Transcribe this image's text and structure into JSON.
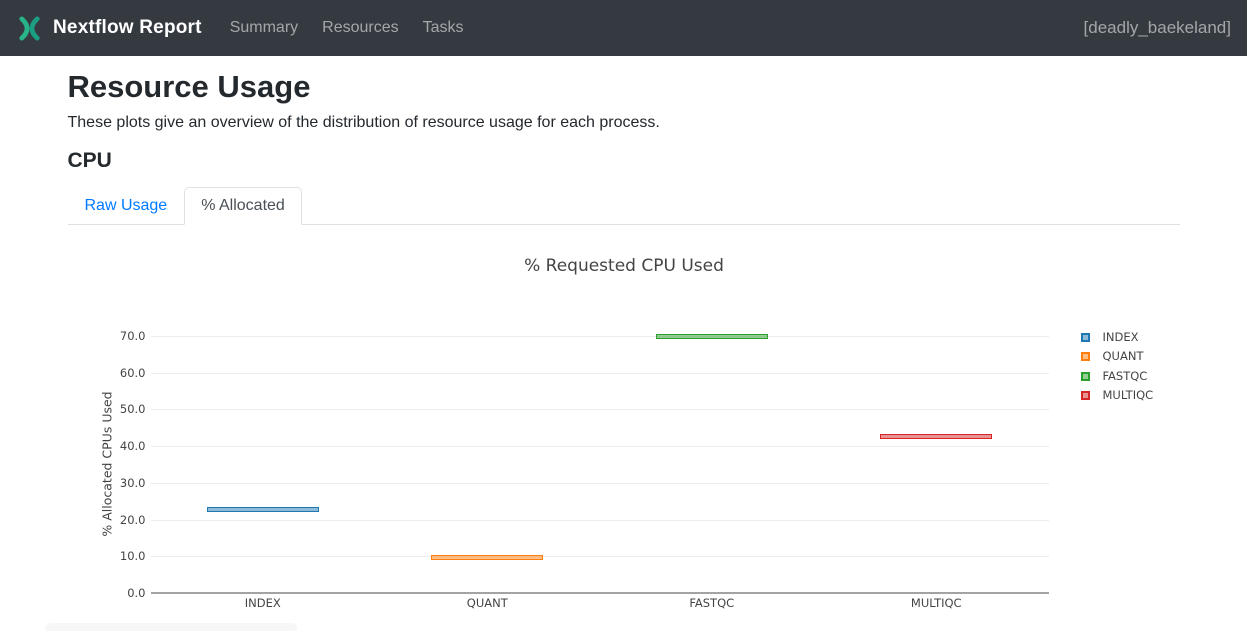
{
  "navbar": {
    "brand": "Nextflow Report",
    "items": [
      {
        "label": "Summary"
      },
      {
        "label": "Resources"
      },
      {
        "label": "Tasks"
      }
    ],
    "run_name": "[deadly_baekeland]",
    "bg_color": "#343a40",
    "logo_colors": {
      "left": "#28b389",
      "right": "#1c9e83"
    }
  },
  "page": {
    "title": "Resource Usage",
    "subtitle": "These plots give an overview of the distribution of resource usage for each process.",
    "section_title": "CPU"
  },
  "tabs": [
    {
      "label": "Raw Usage",
      "active": false
    },
    {
      "label": "% Allocated",
      "active": true
    }
  ],
  "accent_colors": {
    "link_blue": "#007bff",
    "active_tab_text": "#495057",
    "tab_border": "#dee2e6"
  },
  "chart_data": {
    "type": "box",
    "title": "% Requested CPU Used",
    "xlabel": "",
    "ylabel": "% Allocated CPUs Used",
    "categories": [
      "INDEX",
      "QUANT",
      "FASTQC",
      "MULTIQC"
    ],
    "series": [
      {
        "name": "INDEX",
        "median": 22.8,
        "color": "#1f77b4"
      },
      {
        "name": "QUANT",
        "median": 9.6,
        "color": "#ff7f0e"
      },
      {
        "name": "FASTQC",
        "median": 69.8,
        "color": "#2ca02c"
      },
      {
        "name": "MULTIQC",
        "median": 42.6,
        "color": "#d62728"
      }
    ],
    "yticks": [
      0,
      10,
      20,
      30,
      40,
      50,
      60,
      70
    ],
    "ytick_labels": [
      "0.0",
      "10.0",
      "20.0",
      "30.0",
      "40.0",
      "50.0",
      "60.0",
      "70.0"
    ],
    "ylim": [
      0,
      73
    ],
    "grid": true,
    "legend_position": "right"
  }
}
